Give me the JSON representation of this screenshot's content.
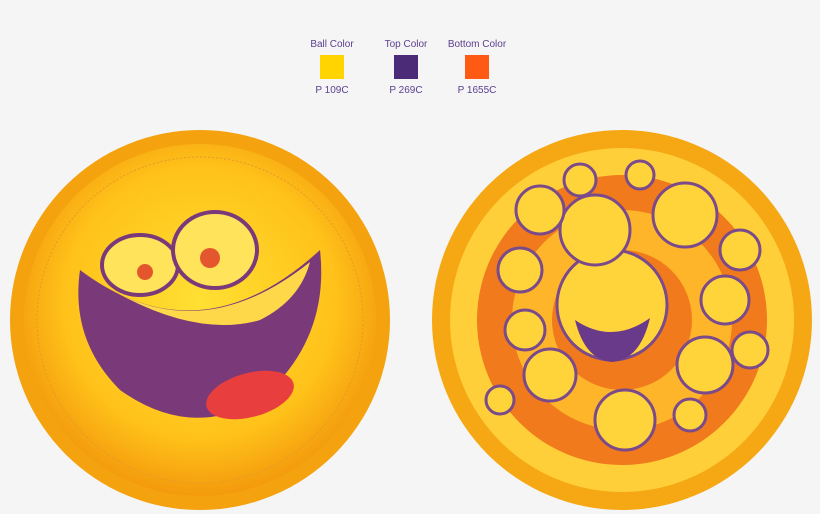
{
  "swatches": [
    {
      "label": "Ball Color",
      "code": "P 109C",
      "color": "#ffd400"
    },
    {
      "label": "Top Color",
      "code": "P 269C",
      "color": "#4b2a78"
    },
    {
      "label": "Bottom Color",
      "code": "P 1655C",
      "color": "#ff5a14"
    }
  ]
}
